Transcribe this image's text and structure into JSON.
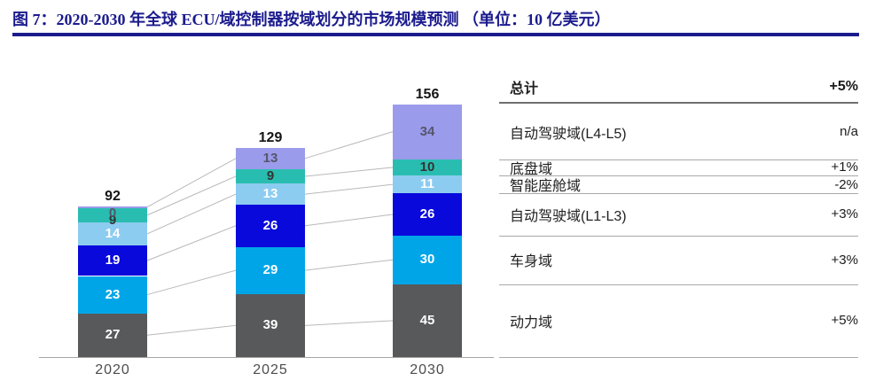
{
  "figure": {
    "title": "图 7：2020-2030 年全球 ECU/域控制器按域划分的市场规模预测 （单位：10 亿美元）",
    "accent_color": "#1b1b8e"
  },
  "chart_data": {
    "type": "bar",
    "subtype": "stacked-bar",
    "title": "2020-2030 年全球 ECU/域控制器按域划分的市场规模预测",
    "unit": "10 亿美元",
    "categories": [
      "2020",
      "2025",
      "2030"
    ],
    "totals": [
      92,
      129,
      156
    ],
    "series": [
      {
        "key": "powertrain-domain",
        "name": "动力域",
        "values": [
          27,
          39,
          45
        ],
        "growth": "+5%",
        "color": "#58595B",
        "label_color": "#FFFFFF"
      },
      {
        "key": "body-domain",
        "name": "车身域",
        "values": [
          23,
          29,
          30
        ],
        "growth": "+3%",
        "color": "#00A5E8",
        "label_color": "#FFFFFF"
      },
      {
        "key": "ad-l1-l3-domain",
        "name": "自动驾驶域(L1-L3)",
        "values": [
          19,
          26,
          26
        ],
        "growth": "+3%",
        "color": "#0909DC",
        "label_color": "#FFFFFF"
      },
      {
        "key": "cockpit-domain",
        "name": "智能座舱域",
        "values": [
          14,
          13,
          11
        ],
        "growth": "-2%",
        "color": "#8CCCF0",
        "label_color": "#FFFFFF"
      },
      {
        "key": "chassis-domain",
        "name": "底盘域",
        "values": [
          9,
          9,
          10
        ],
        "growth": "+1%",
        "color": "#29BDB1",
        "label_color": "#333333"
      },
      {
        "key": "ad-l4-l5-domain",
        "name": "自动驾驶域(L4-L5)",
        "values": [
          0,
          13,
          34
        ],
        "growth": "n/a",
        "color": "#9B9BEB",
        "label_color": "#55556B"
      }
    ],
    "summary_row": {
      "label": "总计",
      "value": "+5%"
    },
    "legend_position": "right",
    "grid": false
  }
}
